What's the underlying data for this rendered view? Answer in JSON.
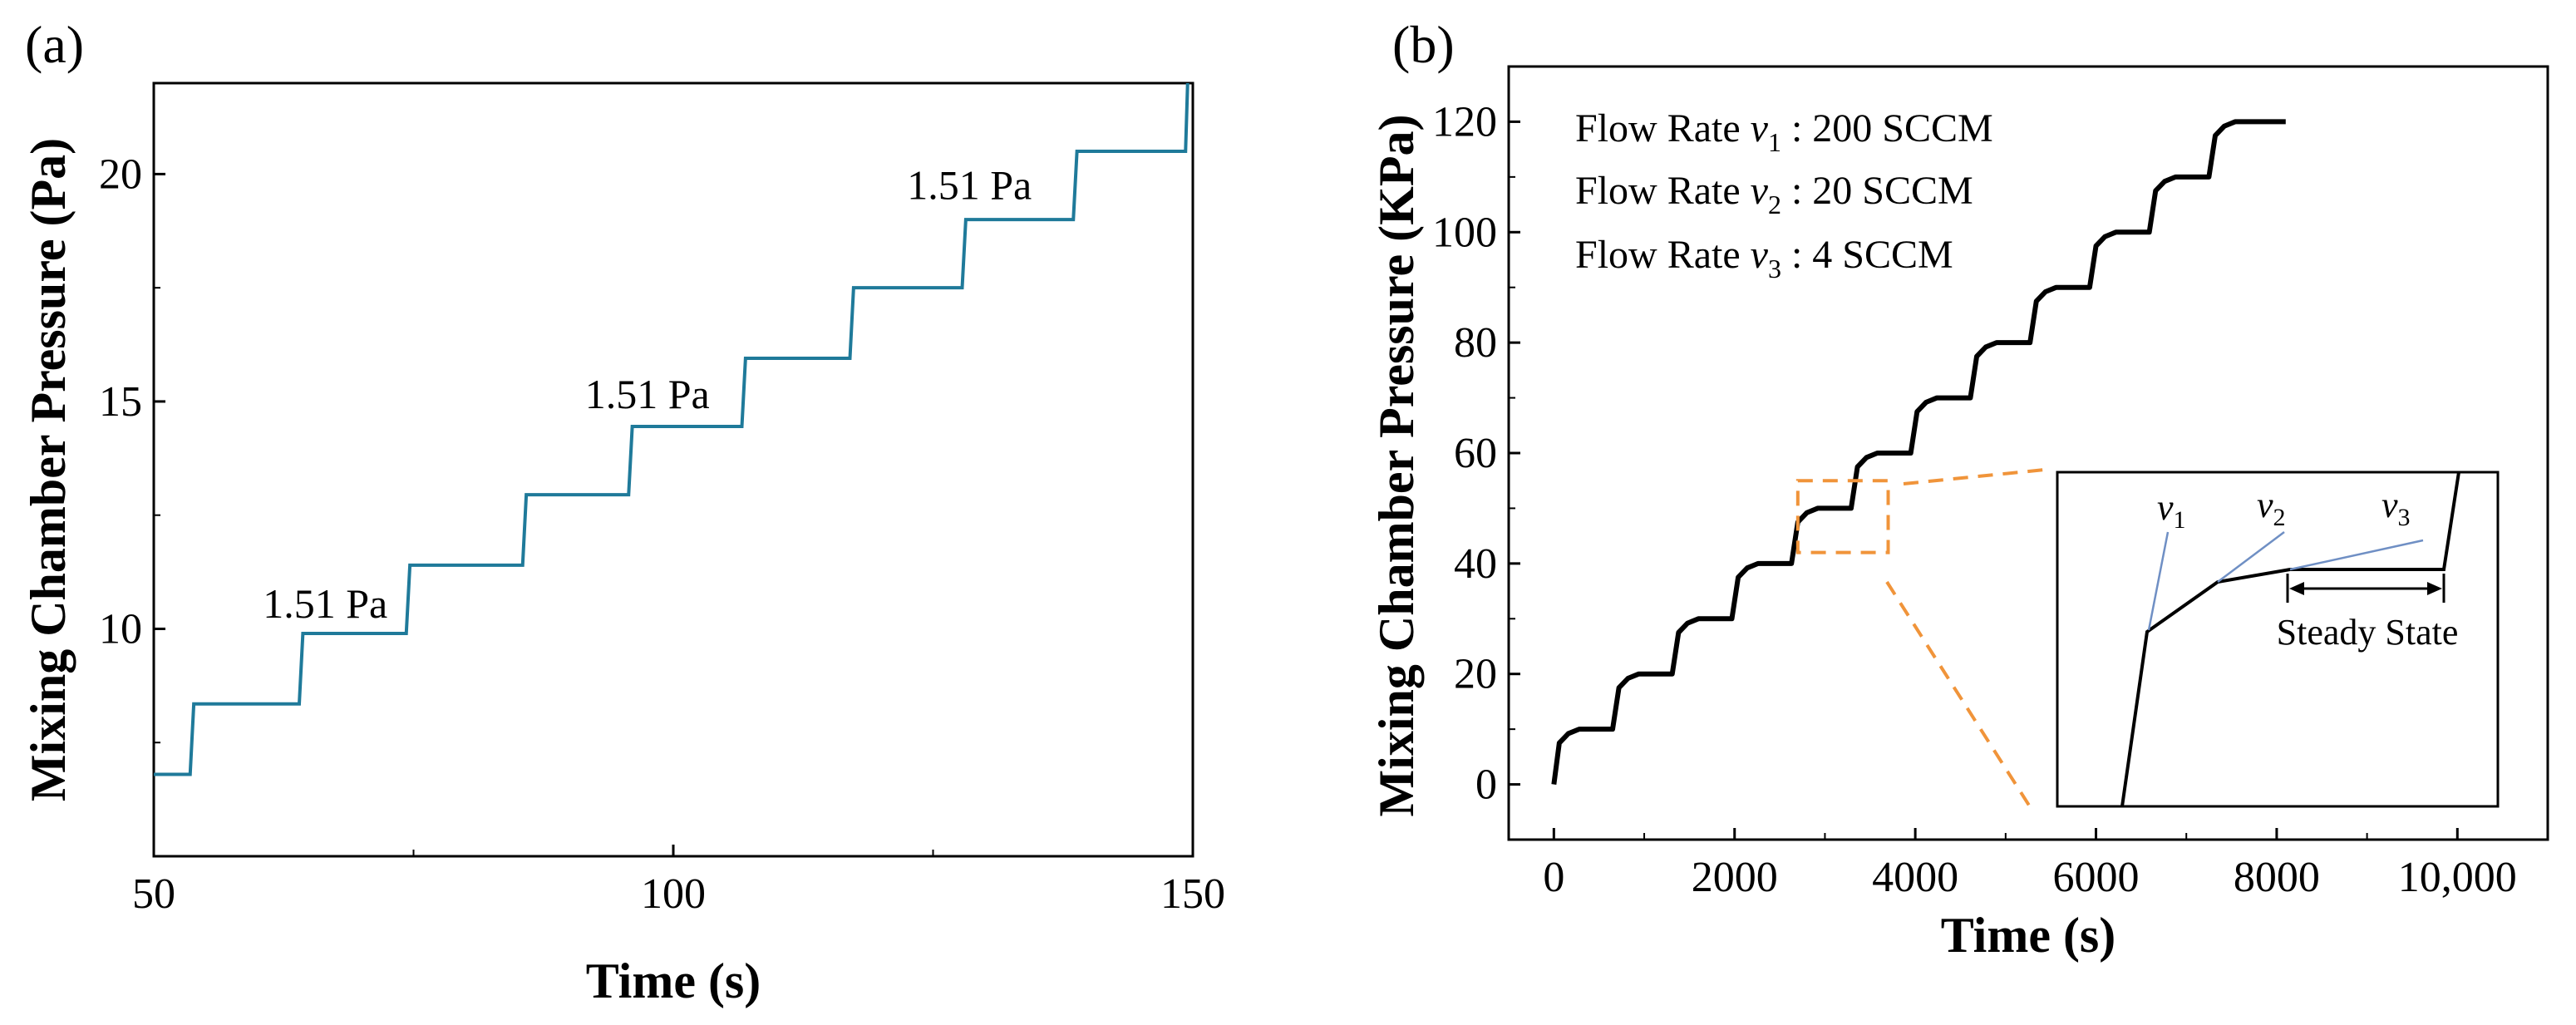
{
  "colors": {
    "series_a": "#1f7a9a",
    "series_b": "#000000",
    "zoom": "#f0943a",
    "inset_guide": "#6f8fc4"
  },
  "chart_data": [
    {
      "panel": "(a)",
      "type": "line",
      "xlabel": "Time (s)",
      "ylabel": "Mixing Chamber Pressure (Pa)",
      "xlim": [
        50,
        150
      ],
      "ylim": [
        5,
        22
      ],
      "xticks": [
        50,
        100,
        150
      ],
      "yticks": [
        10,
        15,
        20
      ],
      "grid": false,
      "step_times": [
        53.5,
        64,
        74.3,
        85.5,
        95.7,
        106.6,
        117,
        127.8,
        138.5,
        149.3
      ],
      "step_levels": [
        6.8,
        8.35,
        9.9,
        11.4,
        12.95,
        14.45,
        15.95,
        17.5,
        19.0,
        20.5,
        22.0
      ],
      "series": [
        {
          "name": "Pressure",
          "x_end": 149.5
        }
      ],
      "annotations": [
        {
          "text": "1.51 Pa",
          "x": 66.5,
          "y": 10.25
        },
        {
          "text": "1.51 Pa",
          "x": 97.5,
          "y": 14.85
        },
        {
          "text": "1.51 Pa",
          "x": 128.5,
          "y": 19.45
        }
      ]
    },
    {
      "panel": "(b)",
      "type": "line",
      "xlabel": "Time (s)",
      "ylabel": "Mixing Chamber Pressure (KPa)",
      "xlim": [
        -500,
        11000
      ],
      "ylim": [
        -10,
        130
      ],
      "xticks": [
        0,
        2000,
        4000,
        6000,
        8000,
        10000
      ],
      "xtick_labels": [
        "0",
        "2000",
        "4000",
        "6000",
        "8000",
        "10,000"
      ],
      "yticks": [
        0,
        20,
        40,
        60,
        80,
        100,
        120
      ],
      "grid": false,
      "step_interval": 660,
      "step_size": 10,
      "num_steps": 12,
      "end_time": 8100,
      "legend": {
        "placement": "top-left",
        "entries": [
          {
            "prefix": "Flow Rate ",
            "symbol": "v",
            "sub": "1",
            "suffix": " : 200 SCCM"
          },
          {
            "prefix": "Flow Rate ",
            "symbol": "v",
            "sub": "2",
            "suffix": " : 20 SCCM"
          },
          {
            "prefix": "Flow Rate ",
            "symbol": "v",
            "sub": "3",
            "suffix": " : 4 SCCM"
          }
        ]
      },
      "zoom_region": {
        "x": [
          2700,
          3700
        ],
        "y": [
          42,
          55
        ]
      },
      "inset": {
        "labels": [
          {
            "symbol": "v",
            "sub": "1"
          },
          {
            "symbol": "v",
            "sub": "2"
          },
          {
            "symbol": "v",
            "sub": "3"
          }
        ],
        "steady_label": "Steady State"
      }
    }
  ]
}
